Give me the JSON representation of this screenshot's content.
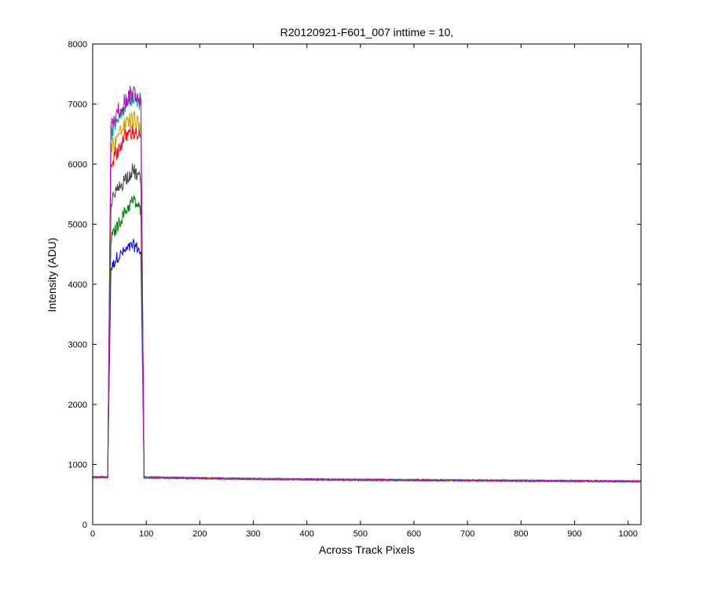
{
  "chart_data": {
    "type": "line",
    "title": "R20120921-F601_007 inttime = 10,",
    "xlabel": "Across Track Pixels",
    "ylabel": "Intensity (ADU)",
    "xlim": [
      0,
      1024
    ],
    "ylim": [
      0,
      8000
    ],
    "xticks": [
      0,
      100,
      200,
      300,
      400,
      500,
      600,
      700,
      800,
      900,
      1000
    ],
    "yticks": [
      0,
      1000,
      2000,
      3000,
      4000,
      5000,
      6000,
      7000,
      8000
    ],
    "grid": false,
    "legend": "none",
    "baseline": {
      "x": [
        0,
        100,
        300,
        500,
        700,
        900,
        1024
      ],
      "y": [
        790,
        785,
        760,
        745,
        735,
        725,
        720
      ]
    },
    "peak": {
      "x_start": 28,
      "x_rise_end": 34,
      "x_fall_start": 90,
      "x_end": 96
    },
    "series": [
      {
        "color": "#0000ff",
        "plateau": [
          [
            34,
            4250
          ],
          [
            45,
            4450
          ],
          [
            60,
            4550
          ],
          [
            75,
            4650
          ],
          [
            85,
            4600
          ],
          [
            90,
            4500
          ]
        ]
      },
      {
        "color": "#008000",
        "plateau": [
          [
            34,
            4750
          ],
          [
            45,
            4950
          ],
          [
            60,
            5200
          ],
          [
            75,
            5400
          ],
          [
            85,
            5300
          ],
          [
            90,
            5200
          ]
        ]
      },
      {
        "color": "#404040",
        "plateau": [
          [
            34,
            5350
          ],
          [
            45,
            5550
          ],
          [
            60,
            5750
          ],
          [
            75,
            5900
          ],
          [
            85,
            5800
          ],
          [
            90,
            5700
          ]
        ]
      },
      {
        "color": "#ff0000",
        "plateau": [
          [
            34,
            6000
          ],
          [
            45,
            6200
          ],
          [
            60,
            6450
          ],
          [
            75,
            6550
          ],
          [
            85,
            6500
          ],
          [
            90,
            6400
          ]
        ]
      },
      {
        "color": "#c8a000",
        "plateau": [
          [
            34,
            6250
          ],
          [
            45,
            6450
          ],
          [
            60,
            6650
          ],
          [
            75,
            6750
          ],
          [
            85,
            6700
          ],
          [
            90,
            6600
          ]
        ]
      },
      {
        "color": "#00a0a0",
        "plateau": [
          [
            34,
            6500
          ],
          [
            45,
            6750
          ],
          [
            60,
            7000
          ],
          [
            75,
            7150
          ],
          [
            85,
            7100
          ],
          [
            90,
            7000
          ]
        ]
      },
      {
        "color": "#c000c0",
        "plateau": [
          [
            34,
            6600
          ],
          [
            45,
            6850
          ],
          [
            60,
            7050
          ],
          [
            75,
            7200
          ],
          [
            85,
            7150
          ],
          [
            90,
            7050
          ]
        ]
      }
    ]
  }
}
